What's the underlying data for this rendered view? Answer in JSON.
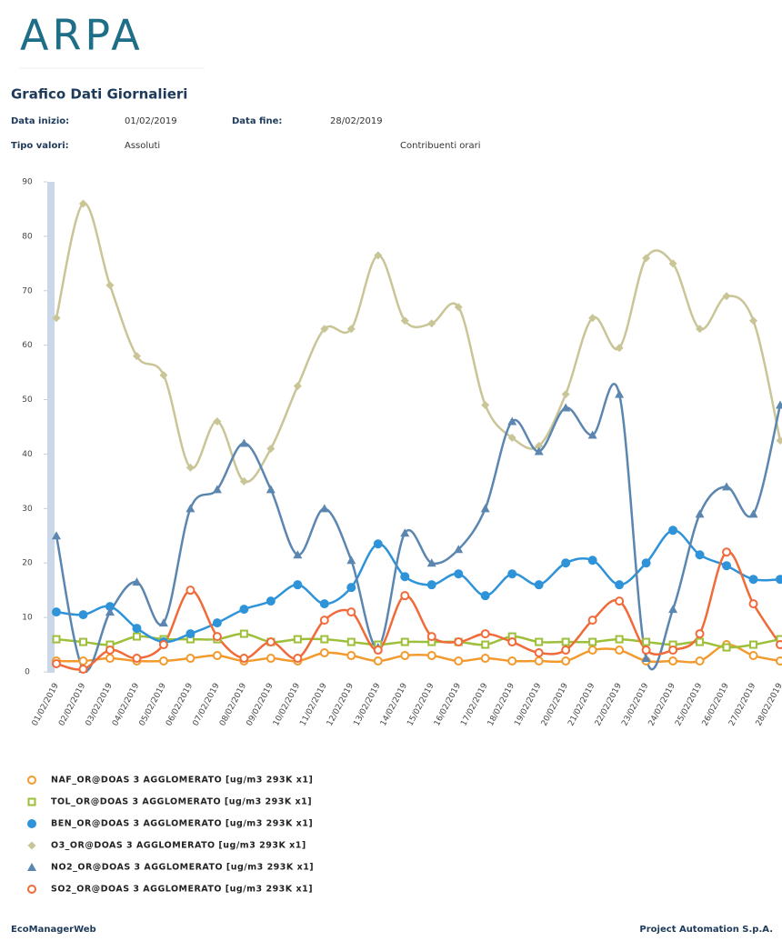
{
  "header": {
    "logo": "ARPA",
    "title": "Grafico Dati Giornalieri"
  },
  "filters": {
    "start_label": "Data inizio:",
    "start": "01/02/2019",
    "end_label": "Data fine:",
    "end": "28/02/2019",
    "type_label": "Tipo valori:",
    "type": "Assoluti",
    "mode": "Contribuenti orari"
  },
  "chart_data": {
    "type": "line",
    "smooth": true,
    "categories": [
      "01/02/2019",
      "02/02/2019",
      "03/02/2019",
      "04/02/2019",
      "05/02/2019",
      "06/02/2019",
      "07/02/2019",
      "08/02/2019",
      "09/02/2019",
      "10/02/2019",
      "11/02/2019",
      "12/02/2019",
      "13/02/2019",
      "14/02/2019",
      "15/02/2019",
      "16/02/2019",
      "17/02/2019",
      "18/02/2019",
      "19/02/2019",
      "20/02/2019",
      "21/02/2019",
      "22/02/2019",
      "23/02/2019",
      "24/02/2019",
      "25/02/2019",
      "26/02/2019",
      "27/02/2019",
      "28/02/2019"
    ],
    "ylim": [
      0,
      90
    ],
    "yticks": [
      0,
      10,
      20,
      30,
      40,
      50,
      60,
      70,
      80,
      90
    ],
    "grid": false,
    "series": [
      {
        "name": "NAF_OR@DOAS 3 AGGLOMERATO [ug/m3 293K x1]",
        "color": "#f29a2e",
        "marker": "circle-open",
        "values": [
          2,
          2,
          2.5,
          2,
          2,
          2.5,
          3,
          2,
          2.5,
          2,
          3.5,
          3,
          2,
          3,
          3,
          2,
          2.5,
          2,
          2,
          2,
          4,
          4,
          2,
          2,
          2,
          5,
          3,
          2
        ]
      },
      {
        "name": "TOL_OR@DOAS 3 AGGLOMERATO [ug/m3 293K x1]",
        "color": "#9dbf3a",
        "marker": "square-open",
        "values": [
          6,
          5.5,
          5,
          6.5,
          6,
          6,
          6,
          7,
          5.5,
          6,
          6,
          5.5,
          5,
          5.5,
          5.5,
          5.5,
          5,
          6.5,
          5.5,
          5.5,
          5.5,
          6,
          5.5,
          5,
          5.5,
          4.5,
          5,
          6
        ]
      },
      {
        "name": "BEN_OR@DOAS 3 AGGLOMERATO [ug/m3 293K x1]",
        "color": "#2e93d8",
        "marker": "circle",
        "values": [
          11,
          10.5,
          12,
          8,
          5.5,
          7,
          9,
          11.5,
          13,
          16,
          12.5,
          15.5,
          23.5,
          17.5,
          16,
          18,
          14,
          18,
          16,
          20,
          20.5,
          16,
          20,
          26,
          21.5,
          19.5,
          17,
          17
        ]
      },
      {
        "name": "O3_OR@DOAS 3 AGGLOMERATO [ug/m3 293K x1]",
        "color": "#c9c596",
        "marker": "diamond",
        "values": [
          65,
          86,
          71,
          58,
          54.5,
          37.5,
          46,
          35,
          41,
          52.5,
          63,
          63,
          76.5,
          64.5,
          64,
          67,
          49,
          43,
          41.5,
          51,
          65,
          59.5,
          76,
          75,
          63,
          69,
          64.5,
          42.5
        ]
      },
      {
        "name": "NO2_OR@DOAS 3 AGGLOMERATO [ug/m3 293K x1]",
        "color": "#5b86b0",
        "marker": "triangle",
        "values": [
          25,
          0.5,
          11,
          16.5,
          9,
          30,
          33.5,
          42,
          33.5,
          21.5,
          30,
          20.5,
          4.5,
          25.5,
          20,
          22.5,
          30,
          46,
          40.5,
          48.5,
          43.5,
          51,
          2.5,
          11.5,
          29,
          34,
          29,
          49
        ]
      },
      {
        "name": "SO2_OR@DOAS 3 AGGLOMERATO [ug/m3 293K x1]",
        "color": "#f06a3a",
        "marker": "circle-open",
        "values": [
          1.5,
          0.5,
          4,
          2.5,
          5,
          15,
          6.5,
          2.5,
          5.5,
          2.5,
          9.5,
          11,
          4,
          14,
          6.5,
          5.5,
          7,
          5.5,
          3.5,
          4,
          9.5,
          13,
          4,
          4,
          7,
          22,
          12.5,
          5
        ]
      }
    ]
  },
  "footer": {
    "left": "EcoManagerWeb",
    "right": "Project Automation S.p.A."
  }
}
